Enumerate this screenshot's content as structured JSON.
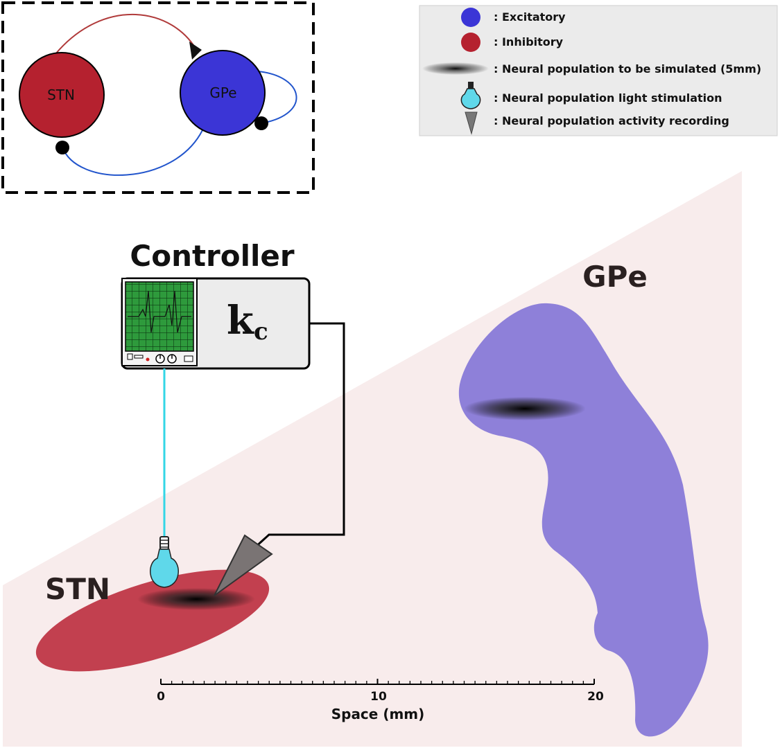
{
  "inset": {
    "stn_label": "STN",
    "gpe_label": "GPe"
  },
  "legend": {
    "items": [
      {
        "icon": "excitatory-dot-icon",
        "text": ": Excitatory"
      },
      {
        "icon": "inhibitory-dot-icon",
        "text": ": Inhibitory"
      },
      {
        "icon": "neural-population-blob-icon",
        "text": ": Neural population to be simulated (5mm)"
      },
      {
        "icon": "light-bulb-icon",
        "text": ": Neural population light stimulation"
      },
      {
        "icon": "recording-electrode-icon",
        "text": ": Neural population activity recording"
      }
    ]
  },
  "controller": {
    "title": "Controller",
    "gain_symbol": "k",
    "gain_subscript": "c"
  },
  "regions": {
    "gpe": "GPe",
    "stn": "STN"
  },
  "scale": {
    "ticks": [
      "0",
      "10",
      "20"
    ],
    "label": "Space (mm)"
  },
  "colors": {
    "excitatory": "#3b35d6",
    "inhibitory": "#b5212f",
    "excitatory_link": "#2255cc",
    "inhibitory_link": "#b03a3a",
    "gpe_region": "#8e80d9",
    "stn_region": "#c2404f",
    "background_wedge": "#f8ecec",
    "optic_fiber": "#33d6e6",
    "screen": "#2e9a3c"
  }
}
